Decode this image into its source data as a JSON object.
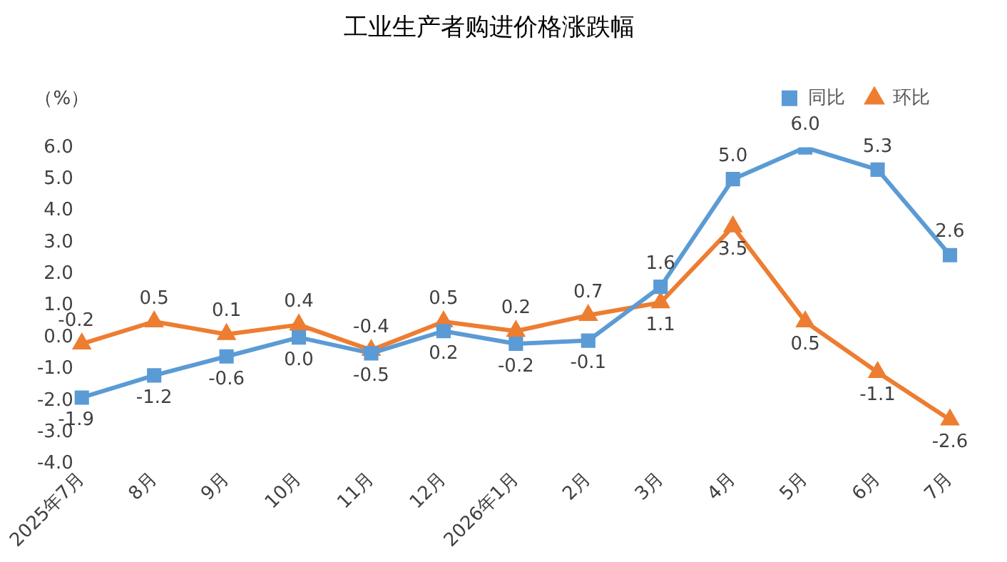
{
  "chart_data": {
    "type": "line",
    "title": "工业生产者购进价格涨跌幅",
    "ylabel": "（%）",
    "categories": [
      "2025年7月",
      "8月",
      "9月",
      "10月",
      "11月",
      "12月",
      "2026年1月",
      "2月",
      "3月",
      "4月",
      "5月",
      "6月",
      "7月"
    ],
    "ylim": [
      -4,
      6
    ],
    "yticks": [
      {
        "value": -4,
        "label": "-4.0"
      },
      {
        "value": -3,
        "label": "-3.0"
      },
      {
        "value": -2,
        "label": "-2.0"
      },
      {
        "value": -1,
        "label": "-1.0"
      },
      {
        "value": 0,
        "label": "0.0"
      },
      {
        "value": 1,
        "label": "1.0"
      },
      {
        "value": 2,
        "label": "2.0"
      },
      {
        "value": 3,
        "label": "3.0"
      },
      {
        "value": 4,
        "label": "4.0"
      },
      {
        "value": 5,
        "label": "5.0"
      },
      {
        "value": 6,
        "label": "6.0"
      }
    ],
    "grid": false,
    "legend": "top right",
    "line_style": "solid",
    "series": [
      {
        "name": "同比",
        "color": "#5b9bd5",
        "marker": "square",
        "values": [
          -1.9,
          -1.2,
          -0.6,
          0.0,
          -0.5,
          0.2,
          -0.2,
          -0.1,
          1.6,
          5.0,
          6.0,
          5.3,
          2.6
        ],
        "value_labels": [
          "-1.9",
          "-1.2",
          "-0.6",
          "0.0",
          "-0.5",
          "0.2",
          "-0.2",
          "-0.1",
          "1.6",
          "5.0",
          "6.0",
          "5.3",
          "2.6"
        ]
      },
      {
        "name": "环比",
        "color": "#ed7d31",
        "marker": "triangle",
        "values": [
          -0.2,
          0.5,
          0.1,
          0.4,
          -0.4,
          0.5,
          0.2,
          0.7,
          1.1,
          3.5,
          0.5,
          -1.1,
          -2.6
        ],
        "value_labels": [
          "-0.2",
          "0.5",
          "0.1",
          "0.4",
          "-0.4",
          "0.5",
          "0.2",
          "0.7",
          "1.1",
          "3.5",
          "0.5",
          "-1.1",
          "-2.6"
        ]
      }
    ]
  }
}
